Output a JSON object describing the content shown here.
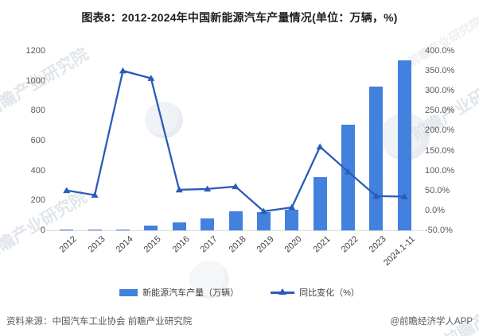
{
  "title": "图表8：2012-2024年中国新能源汽车产量情况(单位：万辆，%)",
  "chart_data": {
    "type": "bar+line",
    "categories": [
      "2012",
      "2013",
      "2014",
      "2015",
      "2016",
      "2017",
      "2018",
      "2019",
      "2020",
      "2021",
      "2022",
      "2023",
      "2024.1-11"
    ],
    "series": [
      {
        "name": "新能源汽车产量（万辆）",
        "type": "bar",
        "axis": "left",
        "values": [
          1.3,
          1.8,
          7.8,
          34.0,
          51.7,
          79.4,
          127.0,
          124.2,
          136.6,
          354.5,
          705.8,
          958.7,
          1134.5
        ]
      },
      {
        "name": "同比变化（%）",
        "type": "line",
        "axis": "right",
        "values": [
          50.0,
          38.5,
          350.0,
          331.1,
          51.7,
          53.8,
          59.9,
          -2.3,
          7.5,
          159.5,
          96.9,
          35.8,
          34.6
        ]
      }
    ],
    "left_axis": {
      "min": 0,
      "max": 1200,
      "step": 200,
      "labels": [
        "0",
        "200",
        "400",
        "600",
        "800",
        "1000",
        "1200"
      ]
    },
    "right_axis": {
      "min": -50,
      "max": 400,
      "step": 50,
      "labels": [
        "-50.0%",
        "0.0%",
        "50.0%",
        "100.0%",
        "150.0%",
        "200.0%",
        "250.0%",
        "300.0%",
        "350.0%",
        "400.0%"
      ]
    },
    "grid": false,
    "legend_position": "bottom",
    "colors": {
      "bar": "#4381DE",
      "line": "#2A5CB8"
    }
  },
  "legend": {
    "items": [
      {
        "label": "新能源汽车产量（万辆）",
        "type": "bar"
      },
      {
        "label": "同比变化（%）",
        "type": "line"
      }
    ]
  },
  "footer": {
    "source": "资料来源：中国汽车工业协会 前瞻产业研究院",
    "credit": "@前瞻经济学人APP"
  },
  "watermark": {
    "text": "前瞻产业研究院"
  }
}
